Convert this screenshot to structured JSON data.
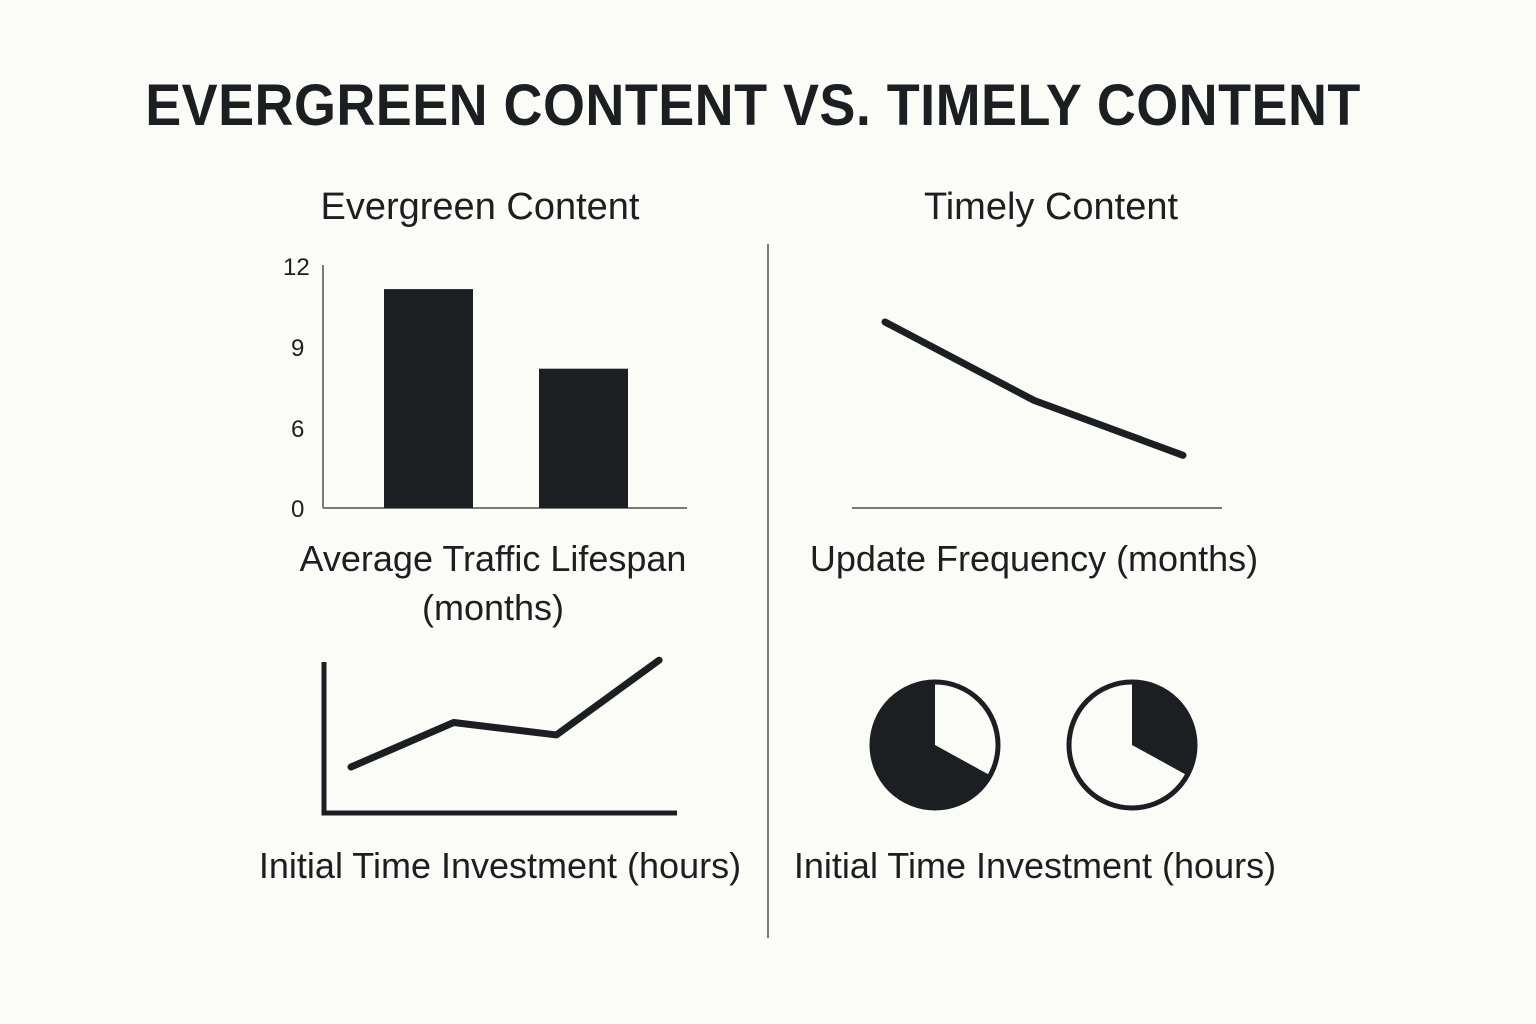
{
  "title": "EVERGREEN CONTENT VS. TIMELY CONTENT",
  "sections": {
    "evergreen": {
      "title": "Evergreen Content"
    },
    "timely": {
      "title": "Timely Content"
    }
  },
  "colors": {
    "ink": "#1c1f22",
    "background": "#fbfbf7",
    "divider": "#7a7a7a"
  },
  "chart_data": [
    {
      "type": "bar",
      "panel": "evergreen",
      "title": "",
      "xlabel": "Average Traffic Lifespan (months)",
      "ylabel": "",
      "categories": [
        "",
        ""
      ],
      "values": [
        11,
        7
      ],
      "yticks": [
        "12",
        "9",
        "6",
        "0"
      ],
      "ylim": [
        0,
        12
      ]
    },
    {
      "type": "line",
      "panel": "evergreen",
      "title": "",
      "xlabel": "Initial Time Investment (hours)",
      "ylabel": "",
      "x": [
        1,
        2,
        3,
        4
      ],
      "values": [
        2,
        4.5,
        3.8,
        8
      ]
    },
    {
      "type": "line",
      "panel": "timely",
      "title": "",
      "xlabel": "Update Frequency (months)",
      "ylabel": "",
      "x": [
        1,
        2,
        3
      ],
      "values": [
        10,
        6,
        3.2
      ]
    },
    {
      "type": "pie",
      "panel": "timely",
      "title": "",
      "xlabel": "Initial Time Investment (hours)",
      "pies": [
        {
          "filled_fraction": 0.67
        },
        {
          "filled_fraction": 0.33
        }
      ]
    }
  ]
}
